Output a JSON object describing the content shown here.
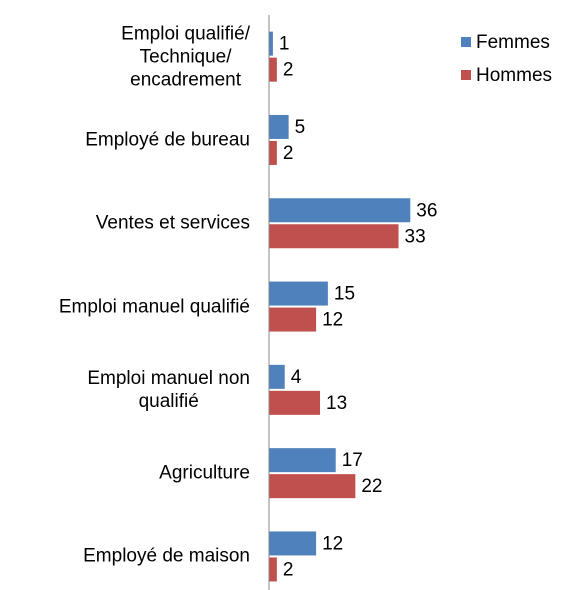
{
  "chart_data": {
    "type": "barh",
    "categories": [
      "Emploi qualifié/\nTechnique/\nencadrement",
      "Employé de bureau",
      "Ventes et services",
      "Emploi manuel qualifié",
      "Emploi manuel non\nqualifié",
      "Agriculture",
      "Employé de maison"
    ],
    "series": [
      {
        "name": "Femmes",
        "color": "#4f81bd",
        "values": [
          1,
          5,
          36,
          15,
          4,
          17,
          12
        ]
      },
      {
        "name": "Hommes",
        "color": "#c0504d",
        "values": [
          2,
          2,
          33,
          12,
          13,
          22,
          2
        ]
      }
    ],
    "xlim": [
      0,
      40
    ],
    "legend": "top-right"
  }
}
